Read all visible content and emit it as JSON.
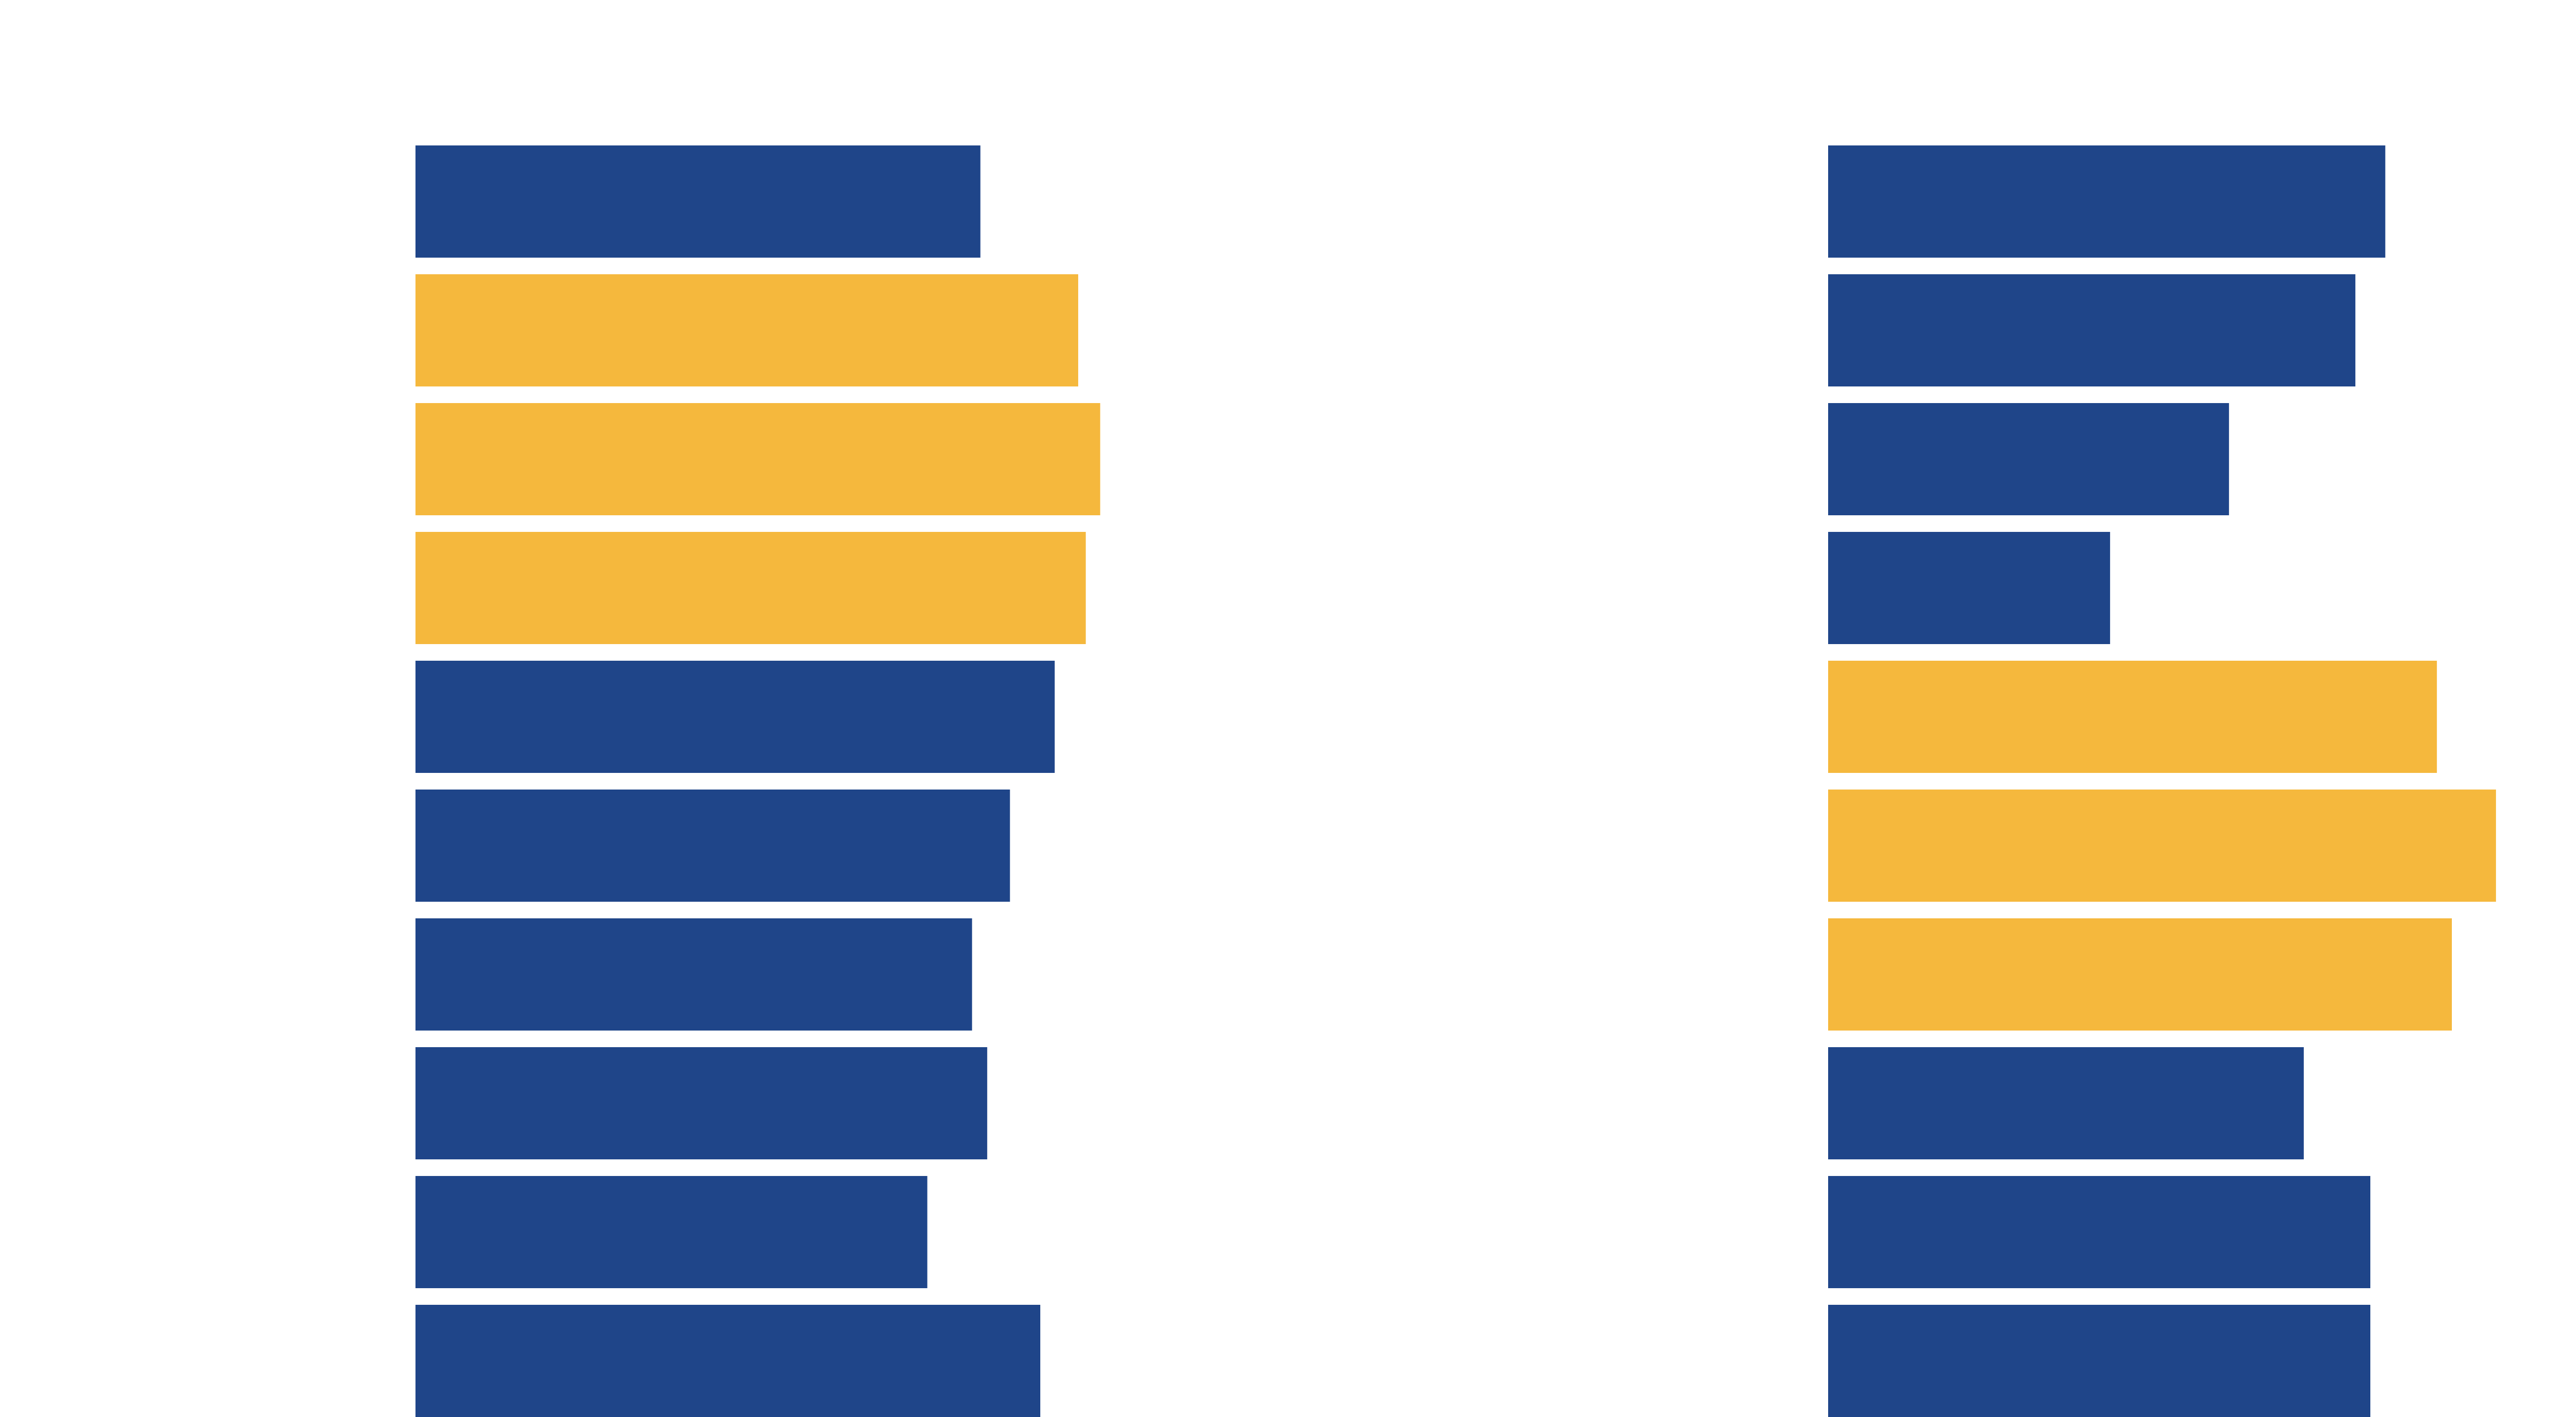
{
  "colors": {
    "background": "#ffffff",
    "primary": "#1f4589",
    "highlight": "#f5b83d"
  },
  "chart_data": [
    {
      "type": "bar",
      "orientation": "horizontal",
      "title": "",
      "xlabel": "",
      "ylabel": "",
      "grid": false,
      "legend": "none",
      "xlim": [
        0,
        100
      ],
      "values": [
        74.5,
        87.4,
        90.3,
        88.4,
        84.3,
        78.4,
        73.4,
        75.4,
        67.5,
        82.4
      ],
      "highlighted": [
        false,
        true,
        true,
        true,
        false,
        false,
        false,
        false,
        false,
        false
      ]
    },
    {
      "type": "bar",
      "orientation": "horizontal",
      "title": "",
      "xlabel": "",
      "ylabel": "",
      "grid": false,
      "legend": "none",
      "xlim": [
        0,
        100
      ],
      "values": [
        74.5,
        70.5,
        53.6,
        37.7,
        81.4,
        89.3,
        83.4,
        63.6,
        72.5,
        72.5
      ],
      "highlighted": [
        false,
        false,
        false,
        false,
        true,
        true,
        true,
        false,
        false,
        false
      ]
    }
  ]
}
